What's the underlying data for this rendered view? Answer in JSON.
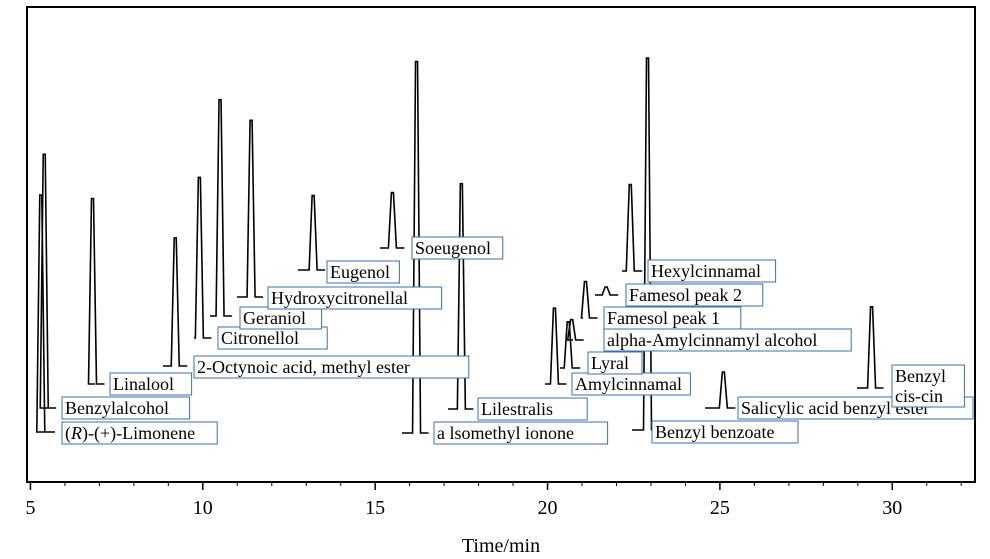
{
  "chart_data": {
    "type": "line",
    "xlabel": "Time/min",
    "xlim": [
      4.9,
      32.4
    ],
    "xticks": [
      5,
      10,
      15,
      20,
      25,
      30
    ],
    "grid": false,
    "color": "#000000",
    "label_box_color": "#3a6fb0",
    "peaks": [
      {
        "rt": 5.3,
        "height": 0.79,
        "label": "(R)-(+)-Limonene",
        "label_italic_part": "R"
      },
      {
        "rt": 5.4,
        "height": 0.89,
        "label": "Benzylalcohol"
      },
      {
        "rt": 6.8,
        "height": 0.7,
        "label": "Linalool"
      },
      {
        "rt": 9.2,
        "height": 0.61,
        "label": "2-Octynoic acid, methyl ester"
      },
      {
        "rt": 9.9,
        "height": 0.73,
        "label": "Citronellol"
      },
      {
        "rt": 10.5,
        "height": 0.97,
        "label": "Geraniol"
      },
      {
        "rt": 11.4,
        "height": 0.92,
        "label": "Hydroxycitronellal"
      },
      {
        "rt": 13.2,
        "height": 0.73,
        "label": "Eugenol"
      },
      {
        "rt": 15.5,
        "height": 0.77,
        "label": "Soeugenol"
      },
      {
        "rt": 16.2,
        "height": 1.15,
        "label": "a lsomethyl ionone"
      },
      {
        "rt": 17.5,
        "height": 0.86,
        "label": "Lilestralis"
      },
      {
        "rt": 20.2,
        "height": 0.48,
        "label": "Amylcinnamal"
      },
      {
        "rt": 20.6,
        "height": 0.33,
        "label": "Lyral"
      },
      {
        "rt": 20.7,
        "height": 0.17,
        "label": "alpha-Amylcinnamyl alcohol"
      },
      {
        "rt": 21.1,
        "height": 0.14,
        "label": "Famesol peak 1"
      },
      {
        "rt": 21.7,
        "height": 0.04,
        "label": "Famesol peak 2"
      },
      {
        "rt": 22.4,
        "height": 0.33,
        "label": "Hexylcinnamal"
      },
      {
        "rt": 22.9,
        "height": 1.2,
        "label": "Benzyl benzoate"
      },
      {
        "rt": 25.1,
        "height": 0.12,
        "label": "Salicylic acid benzyl ester"
      },
      {
        "rt": 29.4,
        "height": 0.28,
        "label": "Benzyl cis-cin",
        "label_lines": [
          "Benzyl",
          "cis-cin"
        ]
      }
    ]
  }
}
